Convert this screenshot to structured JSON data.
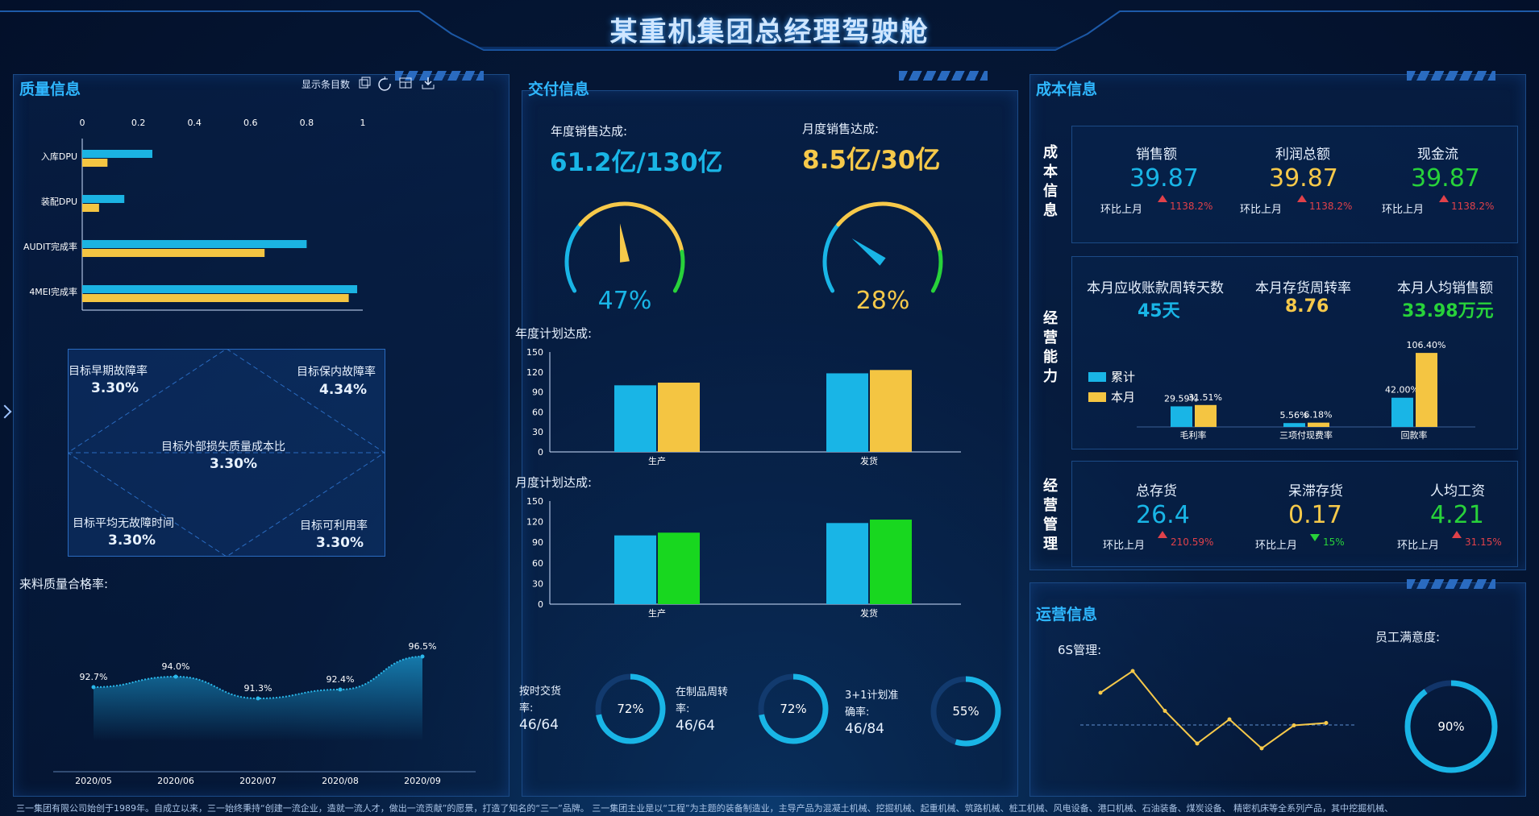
{
  "header": {
    "title": "某重机集团总经理驾驶舱"
  },
  "quality": {
    "title": "质量信息",
    "toolbar_label": "显示条目数",
    "chart_data": {
      "type": "bar",
      "orientation": "horizontal",
      "categories": [
        "入库DPU",
        "装配DPU",
        "AUDIT完成率",
        "4MEI完成率"
      ],
      "series": [
        {
          "color": "#1bb3e2",
          "values": [
            0.25,
            0.15,
            0.8,
            0.98
          ]
        },
        {
          "color": "#f4c542",
          "values": [
            0.09,
            0.06,
            0.65,
            0.95
          ]
        }
      ],
      "xlim": [
        0,
        1
      ],
      "xticks": [
        "0",
        "0.2",
        "0.4",
        "0.6",
        "0.8",
        "1"
      ]
    },
    "targets": [
      {
        "label": "目标早期故障率",
        "value": "3.30%"
      },
      {
        "label": "目标保内故障率",
        "value": "4.34%"
      },
      {
        "label": "目标外部损失质量成本比",
        "value": "3.30%"
      },
      {
        "label": "目标平均无故障时间",
        "value": "3.30%"
      },
      {
        "label": "目标可利用率",
        "value": "3.30%"
      }
    ],
    "pass_rate_title": "来料质量合格率:",
    "pass_rate_chart": {
      "type": "area",
      "x": [
        "2020/05",
        "2020/06",
        "2020/07",
        "2020/08",
        "2020/09"
      ],
      "values": [
        92.7,
        94.0,
        91.3,
        92.4,
        96.5
      ],
      "labels": [
        "92.7%",
        "94.0%",
        "91.3%",
        "92.4%",
        "96.5%"
      ]
    }
  },
  "delivery": {
    "title": "交付信息",
    "annual_label": "年度销售达成:",
    "annual_value": "61.2亿/130亿",
    "monthly_label": "月度销售达成:",
    "monthly_value": "8.5亿/30亿",
    "gauge1": {
      "value": 47,
      "text": "47%"
    },
    "gauge2": {
      "value": 28,
      "text": "28%"
    },
    "annual_plan_label": "年度计划达成:",
    "annual_plan_chart": {
      "type": "bar",
      "categories": [
        "生产",
        "发货"
      ],
      "series": [
        {
          "color": "#19b5e6",
          "values": [
            100,
            118
          ]
        },
        {
          "color": "#f4c542",
          "values": [
            104,
            123
          ]
        }
      ],
      "ylim": [
        0,
        150
      ],
      "yticks": [
        "0",
        "30",
        "60",
        "90",
        "120",
        "150"
      ]
    },
    "monthly_plan_label": "月度计划达成:",
    "monthly_plan_chart": {
      "type": "bar",
      "categories": [
        "生产",
        "发货"
      ],
      "series": [
        {
          "color": "#19b5e6",
          "values": [
            100,
            118
          ]
        },
        {
          "color": "#18d71f",
          "values": [
            104,
            123
          ]
        }
      ],
      "ylim": [
        0,
        150
      ],
      "yticks": [
        "0",
        "30",
        "60",
        "90",
        "120",
        "150"
      ]
    },
    "rings": [
      {
        "label1": "按时交货",
        "label2": "率:",
        "count": "46/64",
        "pct": 72,
        "text": "72%"
      },
      {
        "label1": "在制品周转",
        "label2": "率:",
        "count": "46/64",
        "pct": 72,
        "text": "72%"
      },
      {
        "label1": "3+1计划准",
        "label2": "确率:",
        "count": "46/84",
        "pct": 55,
        "text": "55%"
      }
    ]
  },
  "cost": {
    "title": "成本信息",
    "section1": "成本信息",
    "kpis": [
      {
        "name": "销售额",
        "value": "39.87",
        "mom_label": "环比上月",
        "mom": "1138.2%",
        "color": "#19b5e6"
      },
      {
        "name": "利润总额",
        "value": "39.87",
        "mom_label": "环比上月",
        "mom": "1138.2%",
        "color": "#f6c94a"
      },
      {
        "name": "现金流",
        "value": "39.87",
        "mom_label": "环比上月",
        "mom": "1138.2%",
        "color": "#28d23a"
      }
    ],
    "section2": "经营能力",
    "ability": [
      {
        "name": "本月应收账款周转天数",
        "value": "45天",
        "color": "#19b5e6"
      },
      {
        "name": "本月存货周转率",
        "value": "8.76",
        "color": "#f6c94a"
      },
      {
        "name": "本月人均销售额",
        "value": "33.98万元",
        "color": "#28d23a"
      }
    ],
    "ability_chart": {
      "type": "bar",
      "legend": [
        "累计",
        "本月"
      ],
      "categories": [
        "毛利率",
        "三项付现费率",
        "回款率"
      ],
      "series": [
        {
          "name": "累计",
          "color": "#19b5e6",
          "values": [
            29.59,
            5.56,
            42.0
          ],
          "labels": [
            "29.59%",
            "5.56%",
            "42.00%"
          ]
        },
        {
          "name": "本月",
          "color": "#f4c542",
          "values": [
            31.51,
            6.18,
            106.4
          ],
          "labels": [
            "31.51%",
            "6.18%",
            "106.40%"
          ]
        }
      ]
    },
    "section3": "经营管理",
    "mgmt": [
      {
        "name": "总存货",
        "value": "26.4",
        "mom_label": "环比上月",
        "mom": "210.59%",
        "dir": "up",
        "color": "#19b5e6"
      },
      {
        "name": "呆滞存货",
        "value": "0.17",
        "mom_label": "环比上月",
        "mom": "15%",
        "dir": "down",
        "color": "#f6c94a"
      },
      {
        "name": "人均工资",
        "value": "4.21",
        "mom_label": "环比上月",
        "mom": "31.15%",
        "dir": "up",
        "color": "#28d23a"
      }
    ]
  },
  "ops": {
    "title": "运营信息",
    "s6_label": "6S管理:",
    "s6_chart": {
      "type": "line",
      "values": [
        60,
        78,
        45,
        18,
        38,
        14,
        33,
        35
      ],
      "color": "#f6c94a"
    },
    "satisfaction_label": "员工满意度:",
    "satisfaction": {
      "value": 90,
      "text": "90%"
    }
  },
  "footer": {
    "text": "三一集团有限公司始创于1989年。自成立以来，三一始终秉持“创建一流企业，造就一流人才，做出一流贡献”的愿景，打造了知名的“三一”品牌。 三一集团主业是以“工程”为主题的装备制造业，主导产品为混凝土机械、挖掘机械、起重机械、筑路机械、桩工机械、风电设备、港口机械、石油装备、煤炭设备、 精密机床等全系列产品，其中挖掘机械、"
  }
}
